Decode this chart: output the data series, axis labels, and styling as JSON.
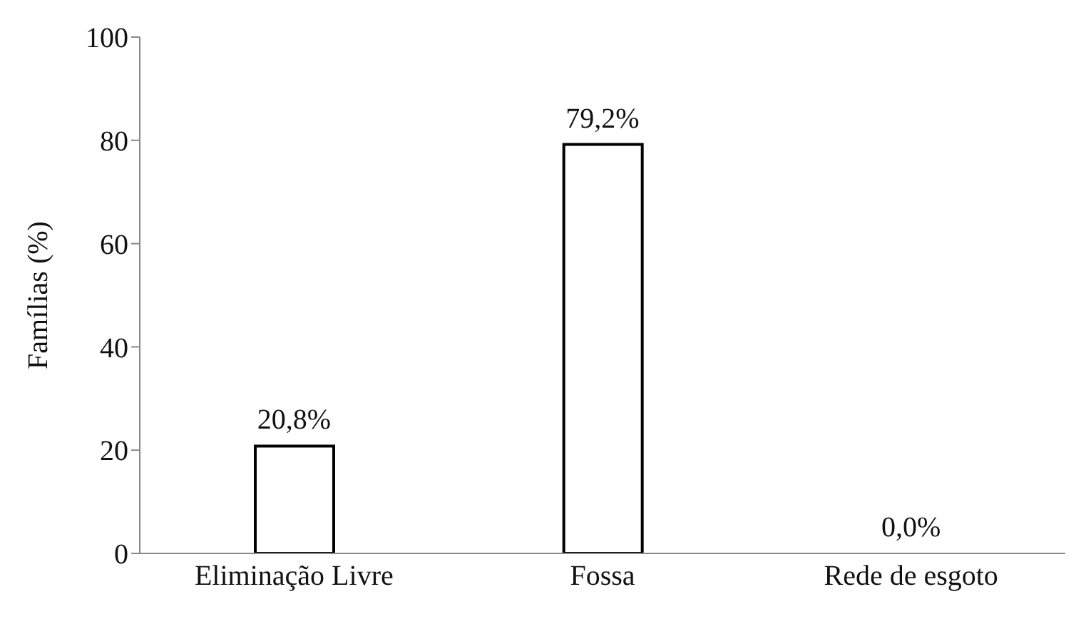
{
  "chart_data": {
    "type": "bar",
    "ylabel": "Famílias (%)",
    "categories": [
      "Eliminação Livre",
      "Fossa",
      "Rede de esgoto"
    ],
    "values": [
      20.8,
      79.2,
      0.0
    ],
    "value_labels": [
      "20,8%",
      "79,2%",
      "0,0%"
    ],
    "color": "#ffffff",
    "ylim": [
      0,
      100
    ],
    "yticks": [
      0,
      20,
      40,
      60,
      80,
      100
    ],
    "grid": false,
    "legend": false
  }
}
